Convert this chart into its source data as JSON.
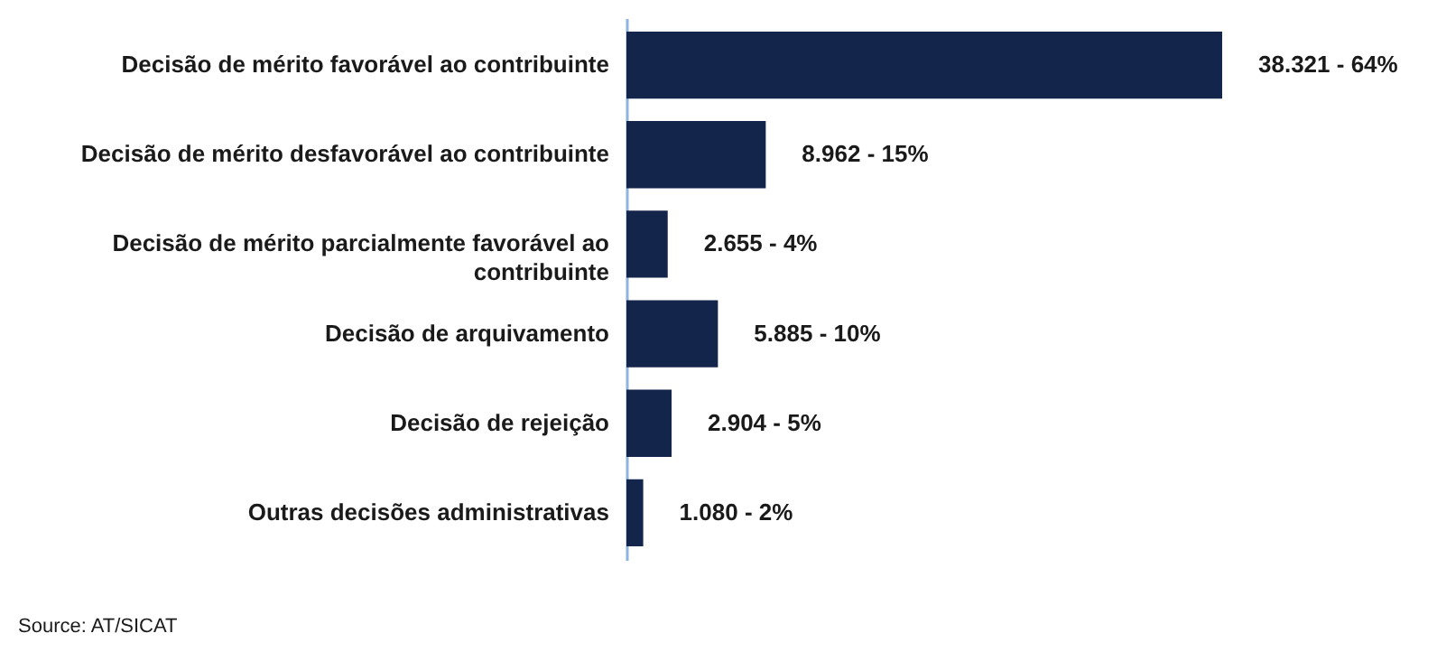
{
  "chart_data": {
    "type": "bar",
    "orientation": "horizontal",
    "categories": [
      "Decisão de mérito favorável ao contribuinte",
      "Decisão de mérito desfavorável ao contribuinte",
      "Decisão de mérito parcialmente favorável ao\ncontribuinte",
      "Decisão de arquivamento",
      "Decisão de rejeição",
      "Outras decisões administrativas"
    ],
    "values": [
      38321,
      8962,
      2655,
      5885,
      2904,
      1080
    ],
    "value_labels": [
      "38.321 - 64%",
      "8.962 - 15%",
      "2.655 - 4%",
      "5.885 - 10%",
      "2.904 - 5%",
      "1.080 - 2%"
    ],
    "color": "#13254a",
    "annotations": [
      "Source: AT/SICAT"
    ]
  }
}
